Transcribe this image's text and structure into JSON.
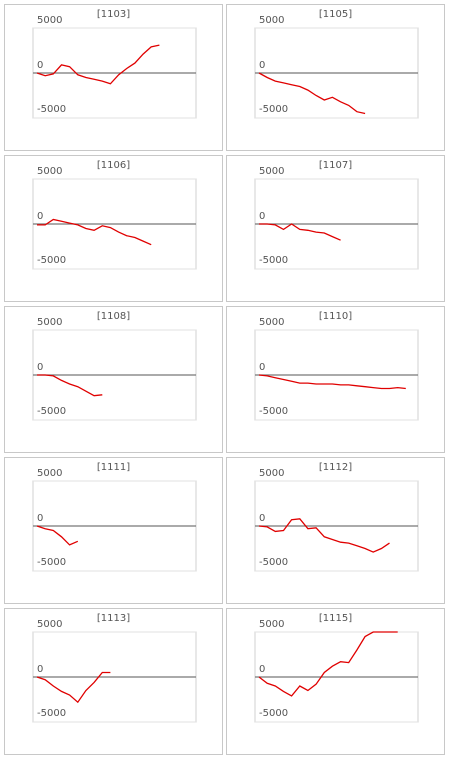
{
  "chart_data": [
    {
      "type": "line",
      "title": "[1103]",
      "color": "#e00000",
      "ylim": [
        -5000,
        5000
      ],
      "yticks": [
        5000,
        0,
        -5000
      ],
      "grid": true,
      "values": [
        0,
        -300,
        -100,
        900,
        700,
        -200,
        -500,
        -700,
        -900,
        -1200,
        -200,
        500,
        1100,
        2100,
        2900,
        3100
      ]
    },
    {
      "type": "line",
      "title": "[1105]",
      "color": "#e00000",
      "ylim": [
        -5000,
        5000
      ],
      "yticks": [
        5000,
        0,
        -5000
      ],
      "grid": true,
      "values": [
        0,
        -500,
        -900,
        -1100,
        -1300,
        -1500,
        -1900,
        -2500,
        -3000,
        -2700,
        -3200,
        -3600,
        -4300,
        -4500
      ]
    },
    {
      "type": "line",
      "title": "[1106]",
      "color": "#e00000",
      "ylim": [
        -5000,
        5000
      ],
      "yticks": [
        5000,
        0,
        -5000
      ],
      "grid": true,
      "values": [
        -100,
        -100,
        500,
        300,
        100,
        -100,
        -500,
        -700,
        -200,
        -400,
        -900,
        -1300,
        -1500,
        -1900,
        -2300
      ]
    },
    {
      "type": "line",
      "title": "[1107]",
      "color": "#e00000",
      "ylim": [
        -5000,
        5000
      ],
      "yticks": [
        5000,
        0,
        -5000
      ],
      "grid": true,
      "values": [
        0,
        0,
        -100,
        -600,
        0,
        -600,
        -700,
        -900,
        -1000,
        -1400,
        -1800
      ]
    },
    {
      "type": "line",
      "title": "[1108]",
      "color": "#e00000",
      "ylim": [
        -5000,
        5000
      ],
      "yticks": [
        5000,
        0,
        -5000
      ],
      "grid": true,
      "values": [
        0,
        0,
        -100,
        -600,
        -1000,
        -1300,
        -1800,
        -2300,
        -2200
      ]
    },
    {
      "type": "line",
      "title": "[1110]",
      "color": "#e00000",
      "ylim": [
        -5000,
        5000
      ],
      "yticks": [
        5000,
        0,
        -5000
      ],
      "grid": true,
      "values": [
        0,
        -100,
        -300,
        -500,
        -700,
        -900,
        -900,
        -1000,
        -1000,
        -1000,
        -1100,
        -1100,
        -1200,
        -1300,
        -1400,
        -1500,
        -1500,
        -1400,
        -1500
      ]
    },
    {
      "type": "line",
      "title": "[1111]",
      "color": "#e00000",
      "ylim": [
        -5000,
        5000
      ],
      "yticks": [
        5000,
        0,
        -5000
      ],
      "grid": true,
      "values": [
        0,
        -300,
        -500,
        -1200,
        -2100,
        -1700
      ]
    },
    {
      "type": "line",
      "title": "[1112]",
      "color": "#e00000",
      "ylim": [
        -5000,
        5000
      ],
      "yticks": [
        5000,
        0,
        -5000
      ],
      "grid": true,
      "values": [
        0,
        -100,
        -600,
        -500,
        700,
        800,
        -300,
        -200,
        -1200,
        -1500,
        -1800,
        -1900,
        -2200,
        -2500,
        -2900,
        -2500,
        -1900
      ]
    },
    {
      "type": "line",
      "title": "[1113]",
      "color": "#e00000",
      "ylim": [
        -5000,
        5000
      ],
      "yticks": [
        5000,
        0,
        -5000
      ],
      "grid": true,
      "values": [
        0,
        -300,
        -1000,
        -1600,
        -2000,
        -2800,
        -1500,
        -600,
        500,
        500
      ]
    },
    {
      "type": "line",
      "title": "[1115]",
      "color": "#e00000",
      "ylim": [
        -5000,
        5000
      ],
      "yticks": [
        5000,
        0,
        -5000
      ],
      "grid": true,
      "values": [
        0,
        -700,
        -1000,
        -1600,
        -2100,
        -1000,
        -1500,
        -800,
        500,
        1200,
        1700,
        1600,
        3000,
        4500,
        5000,
        5000,
        5000,
        5000
      ]
    }
  ]
}
